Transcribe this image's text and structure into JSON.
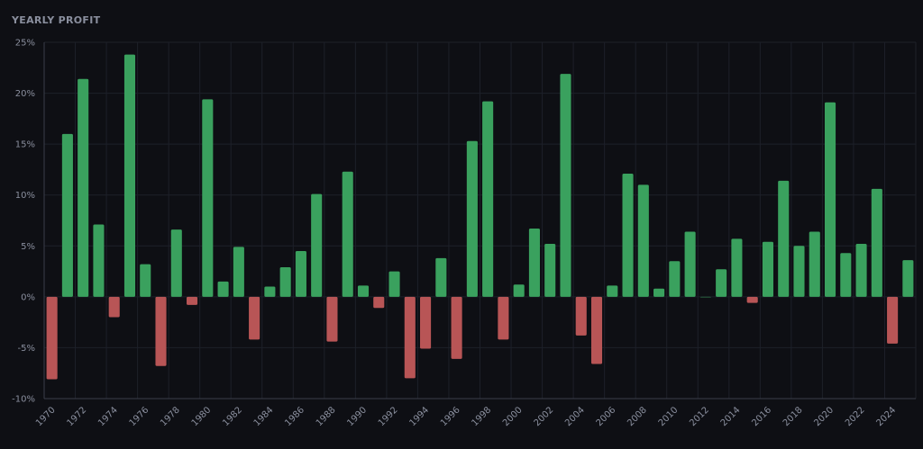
{
  "chart_data": {
    "type": "bar",
    "title": "YEARLY PROFIT",
    "xlabel": "",
    "ylabel": "",
    "ylim": [
      -10,
      25
    ],
    "yticks": [
      25,
      20,
      15,
      10,
      5,
      0,
      -5,
      -10
    ],
    "ytick_labels": [
      "25%",
      "20%",
      "15%",
      "10%",
      "5%",
      "0%",
      "-5%",
      "-10%"
    ],
    "xtick_labels": [
      "1970",
      "1972",
      "1974",
      "1976",
      "1978",
      "1980",
      "1982",
      "1984",
      "1986",
      "1988",
      "1990",
      "1992",
      "1994",
      "1996",
      "1998",
      "2000",
      "2002",
      "2004",
      "2006",
      "2008",
      "2010",
      "2012",
      "2014",
      "2016",
      "2018",
      "2020",
      "2022",
      "2024"
    ],
    "categories": [
      "1970",
      "1971",
      "1972",
      "1973",
      "1974",
      "1975",
      "1976",
      "1977",
      "1978",
      "1979",
      "1980",
      "1981",
      "1982",
      "1983",
      "1984",
      "1985",
      "1986",
      "1987",
      "1988",
      "1989",
      "1990",
      "1991",
      "1992",
      "1993",
      "1994",
      "1995",
      "1996",
      "1997",
      "1998",
      "1999",
      "2000",
      "2001",
      "2002",
      "2003",
      "2004",
      "2005",
      "2006",
      "2007",
      "2008",
      "2009",
      "2010",
      "2011",
      "2012",
      "2013",
      "2014",
      "2015",
      "2016",
      "2017",
      "2018",
      "2019",
      "2020",
      "2021",
      "2022",
      "2023",
      "2024",
      "2025"
    ],
    "values": [
      -8.1,
      16.0,
      21.4,
      7.1,
      -2.0,
      23.8,
      3.2,
      -6.8,
      6.6,
      -0.8,
      19.4,
      1.5,
      4.9,
      -4.2,
      1.0,
      2.9,
      4.5,
      10.1,
      -4.4,
      12.3,
      1.1,
      -1.1,
      2.5,
      -8.0,
      -5.1,
      3.8,
      -6.1,
      15.3,
      19.2,
      -4.2,
      1.2,
      6.7,
      5.2,
      21.9,
      -3.8,
      -6.6,
      1.1,
      12.1,
      11.0,
      0.8,
      3.5,
      6.4,
      0.0,
      2.7,
      5.7,
      -0.6,
      5.4,
      11.4,
      5.0,
      6.4,
      19.1,
      4.3,
      5.2,
      10.6,
      -4.6,
      3.6
    ],
    "grid": true,
    "colors": {
      "positive": "#3aa15e",
      "negative": "#b85556",
      "grid": "#1d2029",
      "axis": "#3a3e4a",
      "background": "#0e0f14"
    }
  }
}
